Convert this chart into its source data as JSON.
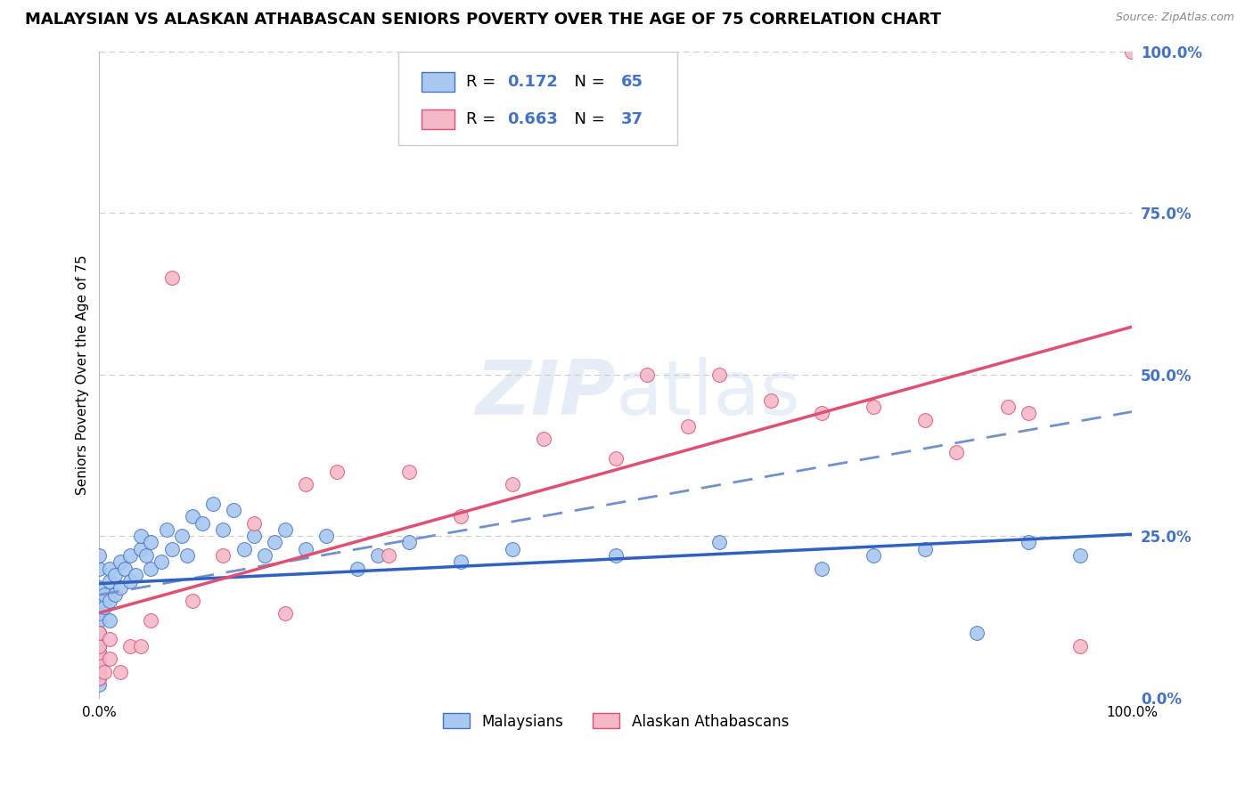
{
  "title": "MALAYSIAN VS ALASKAN ATHABASCAN SENIORS POVERTY OVER THE AGE OF 75 CORRELATION CHART",
  "source": "Source: ZipAtlas.com",
  "ylabel": "Seniors Poverty Over the Age of 75",
  "right_ytick_labels": [
    "0.0%",
    "25.0%",
    "50.0%",
    "75.0%",
    "100.0%"
  ],
  "right_ytick_values": [
    0.0,
    0.25,
    0.5,
    0.75,
    1.0
  ],
  "R_blue": 0.172,
  "N_blue": 65,
  "R_pink": 0.663,
  "N_pink": 37,
  "blue_scatter_color": "#a8c8f0",
  "blue_edge_color": "#4472c4",
  "pink_scatter_color": "#f4b8c8",
  "pink_edge_color": "#e05070",
  "trendline_blue_color": "#3060c0",
  "trendline_pink_color": "#e05070",
  "dashed_line_color": "#7090d0",
  "background_color": "#ffffff",
  "grid_color": "#cccccc",
  "right_axis_color": "#4472c4",
  "title_fontsize": 13,
  "axis_fontsize": 11,
  "legend_fontsize": 13,
  "watermark_text": "ZIPatlas",
  "blue_x": [
    0.0,
    0.0,
    0.0,
    0.0,
    0.0,
    0.0,
    0.0,
    0.0,
    0.0,
    0.0,
    0.0,
    0.0,
    0.0,
    0.0,
    0.0,
    0.0,
    0.005,
    0.005,
    0.01,
    0.01,
    0.01,
    0.01,
    0.015,
    0.015,
    0.02,
    0.02,
    0.025,
    0.03,
    0.03,
    0.035,
    0.04,
    0.04,
    0.045,
    0.05,
    0.05,
    0.06,
    0.065,
    0.07,
    0.08,
    0.085,
    0.09,
    0.1,
    0.11,
    0.12,
    0.13,
    0.14,
    0.15,
    0.16,
    0.17,
    0.18,
    0.2,
    0.22,
    0.25,
    0.27,
    0.3,
    0.35,
    0.4,
    0.5,
    0.6,
    0.7,
    0.75,
    0.8,
    0.85,
    0.9,
    0.95
  ],
  "blue_y": [
    0.02,
    0.03,
    0.04,
    0.05,
    0.06,
    0.07,
    0.08,
    0.1,
    0.12,
    0.13,
    0.15,
    0.17,
    0.2,
    0.22,
    0.08,
    0.1,
    0.14,
    0.16,
    0.12,
    0.15,
    0.18,
    0.2,
    0.16,
    0.19,
    0.17,
    0.21,
    0.2,
    0.18,
    0.22,
    0.19,
    0.23,
    0.25,
    0.22,
    0.2,
    0.24,
    0.21,
    0.26,
    0.23,
    0.25,
    0.22,
    0.28,
    0.27,
    0.3,
    0.26,
    0.29,
    0.23,
    0.25,
    0.22,
    0.24,
    0.26,
    0.23,
    0.25,
    0.2,
    0.22,
    0.24,
    0.21,
    0.23,
    0.22,
    0.24,
    0.2,
    0.22,
    0.23,
    0.1,
    0.24,
    0.22
  ],
  "pink_x": [
    0.0,
    0.0,
    0.0,
    0.0,
    0.0,
    0.005,
    0.01,
    0.01,
    0.02,
    0.03,
    0.04,
    0.05,
    0.07,
    0.09,
    0.12,
    0.15,
    0.18,
    0.2,
    0.23,
    0.28,
    0.3,
    0.35,
    0.4,
    0.43,
    0.5,
    0.53,
    0.57,
    0.6,
    0.65,
    0.7,
    0.75,
    0.8,
    0.83,
    0.88,
    0.9,
    0.95,
    1.0
  ],
  "pink_y": [
    0.03,
    0.05,
    0.07,
    0.08,
    0.1,
    0.04,
    0.06,
    0.09,
    0.04,
    0.08,
    0.08,
    0.12,
    0.65,
    0.15,
    0.22,
    0.27,
    0.13,
    0.33,
    0.35,
    0.22,
    0.35,
    0.28,
    0.33,
    0.4,
    0.37,
    0.5,
    0.42,
    0.5,
    0.46,
    0.44,
    0.45,
    0.43,
    0.38,
    0.45,
    0.44,
    0.08,
    1.0
  ]
}
